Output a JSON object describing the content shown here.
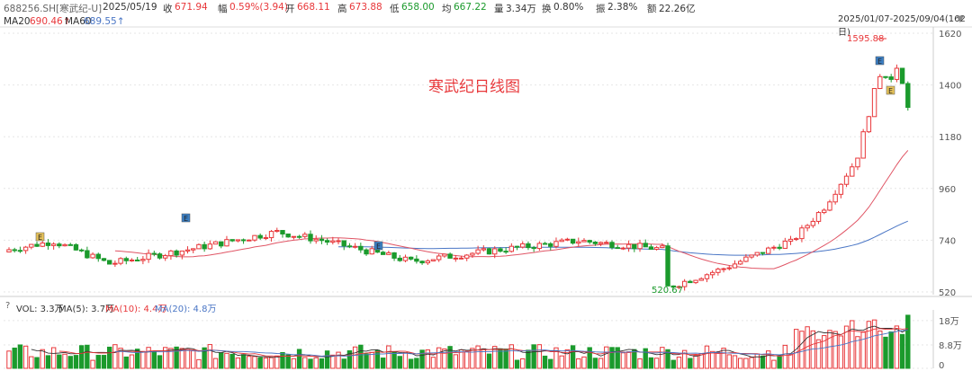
{
  "header": {
    "code": "688256.SH[寒武纪-U]",
    "date": "2025/05/19",
    "close_label": "收",
    "close": "671.94",
    "amp_label": "幅",
    "change": "0.59%(3.94)",
    "open_label": "开",
    "open": "668.11",
    "high_label": "高",
    "high": "673.88",
    "low_label": "低",
    "low": "658.00",
    "avg_label": "均",
    "avg": "667.22",
    "vol_label": "量",
    "volume": "3.34万",
    "turn_label": "换",
    "turnover": "0.80%",
    "swing_label": "振",
    "swing": "2.38%",
    "amount_label": "额",
    "amount": "22.26亿"
  },
  "ma_legend": {
    "ma20_label": "MA20",
    "ma20": "690.46↑",
    "ma60_label": "MA60",
    "ma60": "689.55↑"
  },
  "range": {
    "text": "2025/01/07-2025/09/04(162日)",
    "toggle": "▼"
  },
  "title": "寒武纪日线图",
  "price_axis": {
    "ticks": [
      "1620",
      "1400",
      "1180",
      "960",
      "740",
      "520"
    ]
  },
  "annotations": {
    "high": "1595.88",
    "low": "520.67"
  },
  "markers": [
    {
      "letter": "E",
      "color": "#e7c35a"
    },
    {
      "letter": "E",
      "color": "#3b7fc4"
    },
    {
      "letter": "E",
      "color": "#3b7fc4"
    },
    {
      "letter": "E",
      "color": "#3b7fc4"
    },
    {
      "letter": "E",
      "color": "#e7c35a"
    }
  ],
  "volume_legend": {
    "help": "?",
    "vol": "VOL: 3.3万",
    "ma5": "MA(5): 3.7万",
    "ma10": "MA(10): 4.4万",
    "ma20": "MA(20): 4.8万"
  },
  "volume_axis": {
    "ticks": [
      "18万",
      "8.8万",
      "0"
    ]
  },
  "colors": {
    "up": "#e8373a",
    "down": "#1b9a2c",
    "ma20": "#e05565",
    "ma60": "#4a76c5"
  }
}
